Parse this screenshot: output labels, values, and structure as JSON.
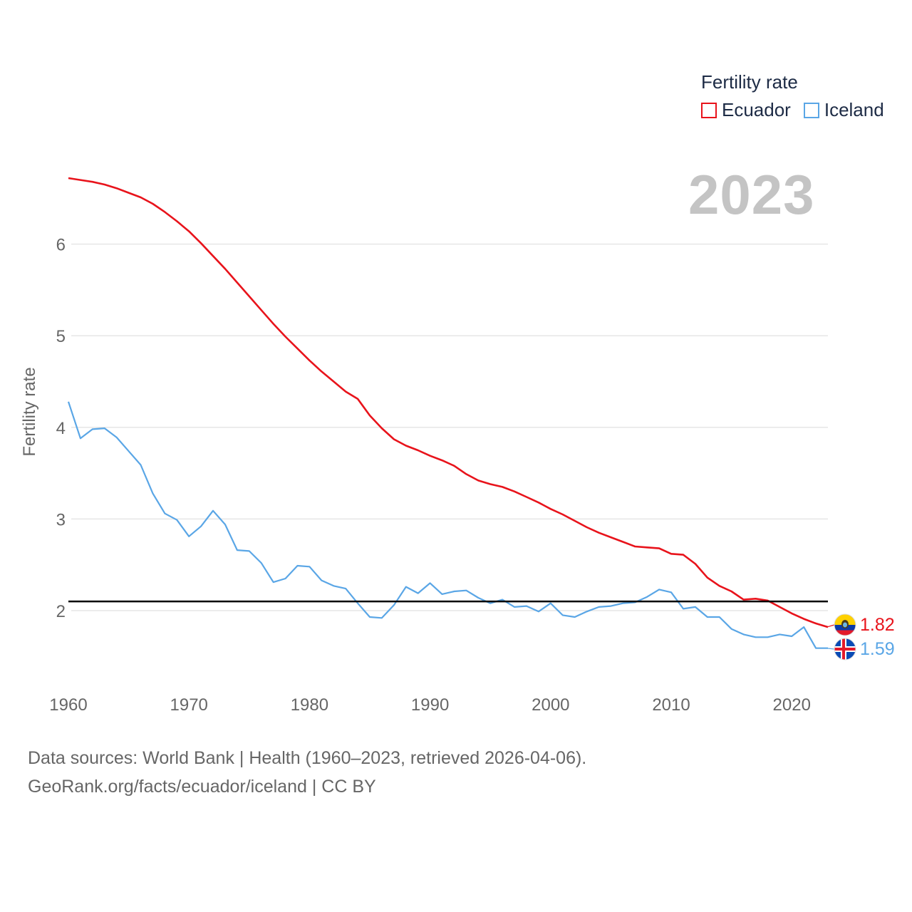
{
  "legend": {
    "title": "Fertility rate",
    "items": [
      {
        "label": "Ecuador",
        "color": "#e8131b"
      },
      {
        "label": "Iceland",
        "color": "#5aa6e6"
      }
    ]
  },
  "current_year": "2023",
  "source": {
    "line1": "Data sources: World Bank | Health (1960–2023, retrieved 2026-04-06).",
    "line2": "GeoRank.org/facts/ecuador/iceland | CC BY"
  },
  "chart_data": {
    "type": "line",
    "title": "",
    "xlabel": "",
    "ylabel": "Fertility rate",
    "xlim": [
      1960,
      2023
    ],
    "ylim": [
      1.3,
      6.9
    ],
    "x_ticks": [
      1960,
      1970,
      1980,
      1990,
      2000,
      2010,
      2020
    ],
    "y_ticks": [
      2,
      3,
      4,
      5,
      6
    ],
    "reference_line": 2.1,
    "x": [
      1960,
      1961,
      1962,
      1963,
      1964,
      1965,
      1966,
      1967,
      1968,
      1969,
      1970,
      1971,
      1972,
      1973,
      1974,
      1975,
      1976,
      1977,
      1978,
      1979,
      1980,
      1981,
      1982,
      1983,
      1984,
      1985,
      1986,
      1987,
      1988,
      1989,
      1990,
      1991,
      1992,
      1993,
      1994,
      1995,
      1996,
      1997,
      1998,
      1999,
      2000,
      2001,
      2002,
      2003,
      2004,
      2005,
      2006,
      2007,
      2008,
      2009,
      2010,
      2011,
      2012,
      2013,
      2014,
      2015,
      2016,
      2017,
      2018,
      2019,
      2020,
      2021,
      2022,
      2023
    ],
    "series": [
      {
        "name": "Ecuador",
        "color": "#e8131b",
        "end_label": "1.82",
        "values": [
          6.72,
          6.7,
          6.68,
          6.65,
          6.61,
          6.56,
          6.51,
          6.44,
          6.35,
          6.25,
          6.14,
          6.01,
          5.87,
          5.73,
          5.58,
          5.43,
          5.28,
          5.13,
          4.99,
          4.86,
          4.73,
          4.61,
          4.5,
          4.39,
          4.31,
          4.13,
          3.99,
          3.87,
          3.8,
          3.75,
          3.69,
          3.64,
          3.58,
          3.49,
          3.42,
          3.38,
          3.35,
          3.3,
          3.24,
          3.18,
          3.11,
          3.05,
          2.98,
          2.91,
          2.85,
          2.8,
          2.75,
          2.7,
          2.69,
          2.68,
          2.62,
          2.61,
          2.51,
          2.36,
          2.27,
          2.21,
          2.12,
          2.13,
          2.11,
          2.04,
          1.97,
          1.91,
          1.86,
          1.82
        ]
      },
      {
        "name": "Iceland",
        "color": "#5aa6e6",
        "end_label": "1.59",
        "values": [
          4.28,
          3.88,
          3.98,
          3.99,
          3.89,
          3.74,
          3.59,
          3.28,
          3.06,
          2.99,
          2.81,
          2.92,
          3.09,
          2.94,
          2.66,
          2.65,
          2.52,
          2.31,
          2.35,
          2.49,
          2.48,
          2.33,
          2.27,
          2.24,
          2.08,
          1.93,
          1.92,
          2.06,
          2.26,
          2.19,
          2.3,
          2.18,
          2.21,
          2.22,
          2.14,
          2.08,
          2.12,
          2.04,
          2.05,
          1.99,
          2.08,
          1.95,
          1.93,
          1.99,
          2.04,
          2.05,
          2.08,
          2.09,
          2.15,
          2.23,
          2.2,
          2.02,
          2.04,
          1.93,
          1.93,
          1.8,
          1.74,
          1.71,
          1.71,
          1.74,
          1.72,
          1.82,
          1.59,
          1.59
        ]
      }
    ]
  }
}
